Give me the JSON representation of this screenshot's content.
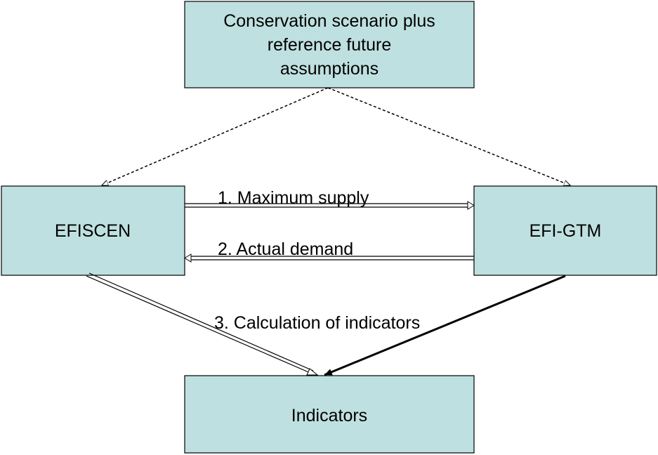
{
  "nodes": [
    {
      "lines": [
        "Conservation scenario plus",
        "reference future",
        "assumptions"
      ]
    },
    {
      "lines": [
        "EFISCEN"
      ]
    },
    {
      "lines": [
        "EFI-GTM"
      ]
    },
    {
      "lines": [
        "Indicators"
      ]
    }
  ],
  "edges": [
    {
      "label": "1. Maximum supply"
    },
    {
      "label": "2. Actual demand"
    },
    {
      "label": "3. Calculation of indicators"
    }
  ]
}
